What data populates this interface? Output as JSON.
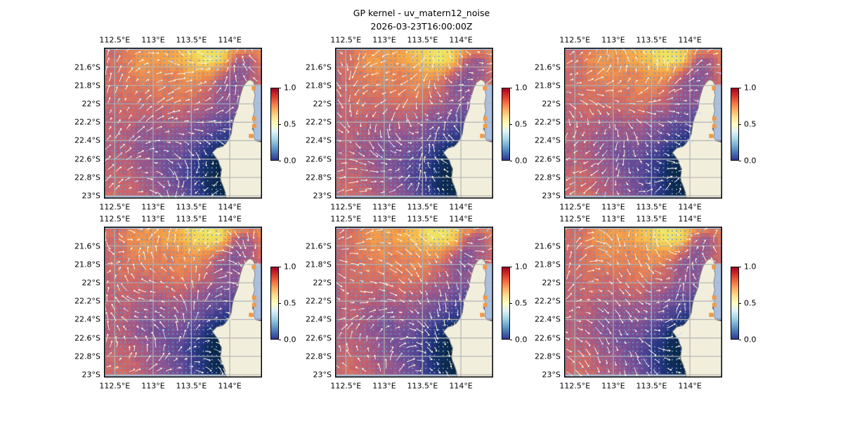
{
  "figure": {
    "title": "GP kernel - uv_matern12_noise",
    "subtitle": "2026-03-23T16:00:00Z",
    "background_color": "#ffffff"
  },
  "chart_data": {
    "type": "heatmap",
    "description": "2x3 grid of identical geographic map panels: GP-kernel noise field over the NW Cape / Exmouth Gulf region of Western Australia, pcolormesh heatmap with quiver arrows, graticule, land mask and a vertical colorbar per panel.",
    "grid_layout": {
      "rows": 2,
      "cols": 3
    },
    "title": "GP kernel - uv_matern12_noise",
    "subtitle": "2026-03-23T16:00:00Z",
    "x_axis": {
      "tick_labels": [
        "112.5°E",
        "113°E",
        "113.5°E",
        "114°E"
      ],
      "tick_values_deg_east": [
        112.5,
        113.0,
        113.5,
        114.0
      ],
      "range_deg_east": [
        112.36,
        114.42
      ],
      "label_sides": [
        "top",
        "bottom"
      ]
    },
    "y_axis": {
      "tick_labels": [
        "21.6°S",
        "21.8°S",
        "22°S",
        "22.2°S",
        "22.4°S",
        "22.6°S",
        "22.8°S",
        "23°S"
      ],
      "tick_values_deg_south": [
        21.6,
        21.8,
        22.0,
        22.2,
        22.4,
        22.6,
        22.8,
        23.0
      ],
      "range_deg_south": [
        21.39,
        23.03
      ],
      "label_side": "left"
    },
    "colorbar": {
      "tick_labels": [
        "1.0",
        "0.5",
        "0.0"
      ],
      "tick_values": [
        1.0,
        0.5,
        0.0
      ],
      "range": [
        0.0,
        1.0
      ],
      "colormap": "RdYlBu_r",
      "gradient_top_to_bottom": [
        "#a50026",
        "#d73027",
        "#f46d43",
        "#fdae61",
        "#fee090",
        "#ffffbf",
        "#e0f3f8",
        "#abd9e9",
        "#74add1",
        "#4575b4",
        "#313695"
      ]
    },
    "field": {
      "note": "normalized 13x13 sample of the plotted scalar field, row 0 = north (top), col 0 = west (left), values in colorbar units 0-1",
      "nx": 13,
      "ny": 13,
      "values": [
        [
          0.62,
          0.6,
          0.68,
          0.72,
          0.78,
          0.75,
          0.85,
          0.92,
          0.95,
          0.9,
          0.78,
          0.72,
          0.7
        ],
        [
          0.6,
          0.62,
          0.7,
          0.75,
          0.72,
          0.78,
          0.82,
          0.9,
          0.95,
          0.88,
          0.55,
          0.48,
          0.68
        ],
        [
          0.58,
          0.6,
          0.66,
          0.72,
          0.7,
          0.68,
          0.72,
          0.78,
          0.75,
          0.6,
          0.45,
          0.5,
          0.62
        ],
        [
          0.58,
          0.62,
          0.64,
          0.66,
          0.68,
          0.66,
          0.7,
          0.68,
          0.6,
          0.45,
          0.42,
          0.55,
          0.6
        ],
        [
          0.56,
          0.6,
          0.62,
          0.6,
          0.62,
          0.64,
          0.66,
          0.62,
          0.55,
          0.48,
          0.45,
          0.5,
          0.55
        ],
        [
          0.55,
          0.58,
          0.6,
          0.58,
          0.56,
          0.6,
          0.58,
          0.52,
          0.48,
          0.42,
          0.4,
          0.45,
          0.5
        ],
        [
          0.55,
          0.56,
          0.55,
          0.52,
          0.5,
          0.52,
          0.5,
          0.45,
          0.4,
          0.35,
          0.3,
          0.35,
          0.4
        ],
        [
          0.54,
          0.55,
          0.52,
          0.48,
          0.45,
          0.48,
          0.45,
          0.4,
          0.32,
          0.25,
          0.2,
          0.25,
          0.3
        ],
        [
          0.52,
          0.54,
          0.5,
          0.45,
          0.4,
          0.42,
          0.4,
          0.32,
          0.2,
          0.12,
          0.1,
          0.15,
          0.2
        ],
        [
          0.54,
          0.55,
          0.52,
          0.48,
          0.42,
          0.38,
          0.35,
          0.25,
          0.12,
          0.06,
          0.08,
          0.1,
          0.15
        ],
        [
          0.56,
          0.58,
          0.55,
          0.5,
          0.45,
          0.4,
          0.32,
          0.22,
          0.1,
          0.05,
          0.06,
          0.08,
          0.12
        ],
        [
          0.58,
          0.6,
          0.58,
          0.52,
          0.48,
          0.42,
          0.35,
          0.25,
          0.12,
          0.06,
          0.05,
          0.06,
          0.1
        ],
        [
          0.6,
          0.62,
          0.6,
          0.55,
          0.5,
          0.45,
          0.38,
          0.28,
          0.15,
          0.08,
          0.05,
          0.05,
          0.08
        ]
      ],
      "colormap_stops": [
        [
          0.0,
          "#04222f"
        ],
        [
          0.07,
          "#0b2947"
        ],
        [
          0.15,
          "#16306a"
        ],
        [
          0.22,
          "#2b3884"
        ],
        [
          0.3,
          "#4a4292"
        ],
        [
          0.38,
          "#6d4e97"
        ],
        [
          0.46,
          "#8f5691"
        ],
        [
          0.52,
          "#ad5c7f"
        ],
        [
          0.58,
          "#c9656c"
        ],
        [
          0.64,
          "#dd755b"
        ],
        [
          0.7,
          "#ec8a50"
        ],
        [
          0.76,
          "#f3a04a"
        ],
        [
          0.82,
          "#f6b74d"
        ],
        [
          0.88,
          "#f4cf55"
        ],
        [
          0.94,
          "#efe364"
        ],
        [
          1.0,
          "#e9f276"
        ]
      ]
    },
    "overlays": {
      "quiver_arrow_color": "#fdf3e0",
      "quiver_arrow_alt_color": "#cddcf0",
      "grid_dot_color": "#6d97c8",
      "graticule_color": "#b4b4b4"
    },
    "map": {
      "water_color": "#a9c0e0",
      "land_color": "#f1eedb",
      "coast_color": "#8f8f8f",
      "region": "North West Cape / Exmouth Gulf, Western Australia",
      "land_polygon_norm": [
        [
          1.0,
          0.628
        ],
        [
          0.962,
          0.618
        ],
        [
          0.946,
          0.59
        ],
        [
          0.952,
          0.562
        ],
        [
          0.938,
          0.538
        ],
        [
          0.95,
          0.505
        ],
        [
          0.942,
          0.462
        ],
        [
          0.953,
          0.42
        ],
        [
          0.946,
          0.372
        ],
        [
          0.956,
          0.315
        ],
        [
          0.946,
          0.272
        ],
        [
          0.953,
          0.246
        ],
        [
          0.943,
          0.224
        ],
        [
          0.926,
          0.213
        ],
        [
          0.91,
          0.219
        ],
        [
          0.896,
          0.236
        ],
        [
          0.879,
          0.263
        ],
        [
          0.868,
          0.3
        ],
        [
          0.861,
          0.325
        ],
        [
          0.853,
          0.362
        ],
        [
          0.849,
          0.398
        ],
        [
          0.837,
          0.432
        ],
        [
          0.824,
          0.468
        ],
        [
          0.815,
          0.503
        ],
        [
          0.81,
          0.537
        ],
        [
          0.806,
          0.568
        ],
        [
          0.798,
          0.592
        ],
        [
          0.784,
          0.617
        ],
        [
          0.768,
          0.64
        ],
        [
          0.752,
          0.655
        ],
        [
          0.713,
          0.666
        ],
        [
          0.686,
          0.696
        ],
        [
          0.705,
          0.722
        ],
        [
          0.724,
          0.749
        ],
        [
          0.732,
          0.777
        ],
        [
          0.744,
          0.802
        ],
        [
          0.741,
          0.832
        ],
        [
          0.737,
          0.862
        ],
        [
          0.742,
          0.888
        ],
        [
          0.752,
          0.912
        ],
        [
          0.761,
          0.938
        ],
        [
          0.769,
          0.963
        ],
        [
          0.773,
          1.0
        ],
        [
          1.0,
          1.0
        ]
      ],
      "gulf_polygon_norm": [
        [
          0.953,
          0.246
        ],
        [
          0.946,
          0.272
        ],
        [
          0.956,
          0.315
        ],
        [
          0.946,
          0.372
        ],
        [
          0.953,
          0.42
        ],
        [
          0.942,
          0.462
        ],
        [
          0.95,
          0.505
        ],
        [
          0.938,
          0.538
        ],
        [
          0.952,
          0.562
        ],
        [
          0.946,
          0.59
        ],
        [
          0.962,
          0.618
        ],
        [
          1.0,
          0.628
        ],
        [
          1.0,
          0.24
        ]
      ],
      "gulf_cells_norm": [
        [
          0.948,
          0.268
        ],
        [
          0.95,
          0.47
        ],
        [
          0.95,
          0.52
        ],
        [
          0.93,
          0.585
        ]
      ],
      "gulf_cell_color": "#f09a4a"
    },
    "panels": [
      {
        "row": 0,
        "col": 0
      },
      {
        "row": 0,
        "col": 1
      },
      {
        "row": 0,
        "col": 2
      },
      {
        "row": 1,
        "col": 0
      },
      {
        "row": 1,
        "col": 1
      },
      {
        "row": 1,
        "col": 2
      }
    ]
  }
}
